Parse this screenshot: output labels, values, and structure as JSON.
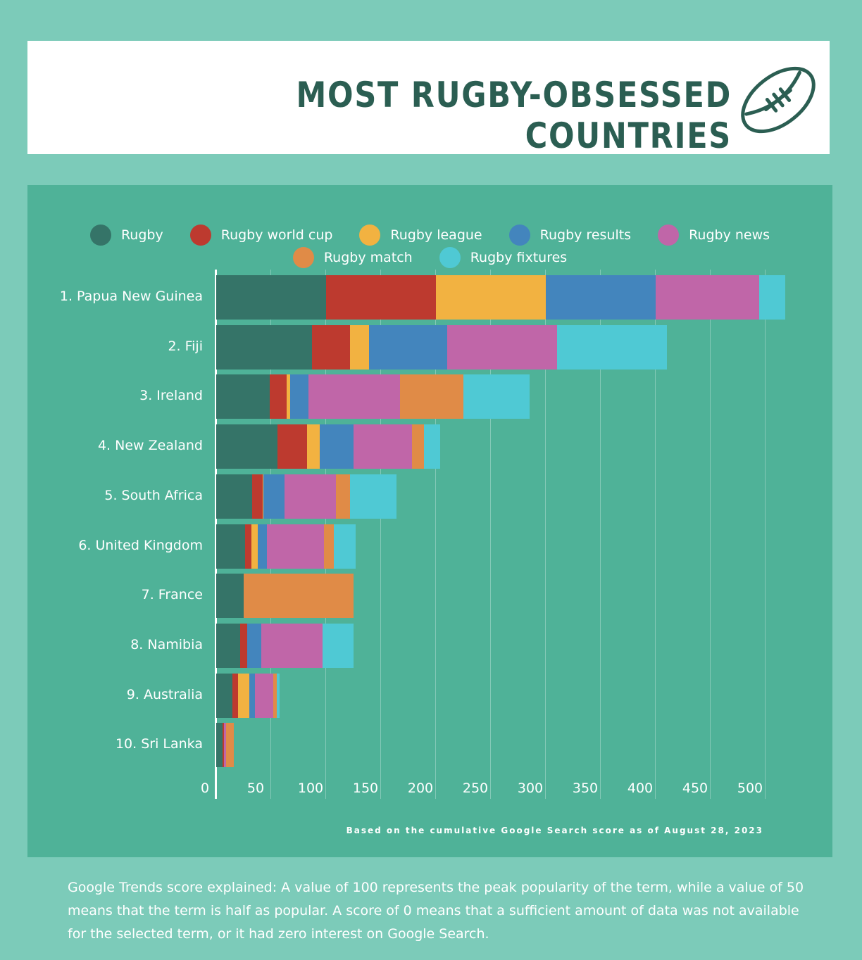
{
  "header": {
    "title": "MOST RUGBY-OBSESSED COUNTRIES",
    "icon": "rugby-ball-icon"
  },
  "chart_data": {
    "type": "bar",
    "orientation": "horizontal",
    "stacked": true,
    "categories": [
      "1. Papua New Guinea",
      "2. Fiji",
      "3. Ireland",
      "4. New Zealand",
      "5. South Africa",
      "6. United Kingdom",
      "7. France",
      "8. Namibia",
      "9. Australia",
      "10. Sri Lanka"
    ],
    "series": [
      {
        "name": "Rugby",
        "color": "#357468",
        "values": [
          100,
          87,
          49,
          56,
          33,
          26,
          25,
          22,
          15,
          6
        ]
      },
      {
        "name": "Rugby world cup",
        "color": "#bd3a2f",
        "values": [
          100,
          35,
          15,
          27,
          9,
          6,
          0,
          6,
          5,
          1
        ]
      },
      {
        "name": "Rugby league",
        "color": "#f2b241",
        "values": [
          100,
          17,
          3,
          11,
          1,
          6,
          0,
          0,
          10,
          0
        ]
      },
      {
        "name": "Rugby results",
        "color": "#4385bd",
        "values": [
          100,
          71,
          17,
          31,
          19,
          8,
          0,
          13,
          5,
          0
        ]
      },
      {
        "name": "Rugby news",
        "color": "#c066a8",
        "values": [
          94,
          100,
          83,
          53,
          47,
          52,
          0,
          56,
          17,
          2
        ]
      },
      {
        "name": "Rugby match",
        "color": "#e08b47",
        "values": [
          0,
          0,
          58,
          11,
          13,
          9,
          100,
          0,
          3,
          7
        ]
      },
      {
        "name": "Rugby fixtures",
        "color": "#4fc9d4",
        "values": [
          24,
          100,
          60,
          15,
          42,
          20,
          0,
          28,
          3,
          0
        ]
      }
    ],
    "xticks": [
      0,
      50,
      100,
      150,
      200,
      250,
      300,
      350,
      400,
      450,
      500
    ],
    "xlim": [
      0,
      550
    ],
    "grid": true,
    "legend": "top"
  },
  "source": "Based on the cumulative Google Search score as of August 28, 2023",
  "footnote": "Google Trends score explained: A value of 100 represents the peak popularity of the term, while a value of 50 means that the term is half as popular. A score of 0 means that a sufficient amount of data was not available for the selected term, or it had zero interest on Google Search."
}
